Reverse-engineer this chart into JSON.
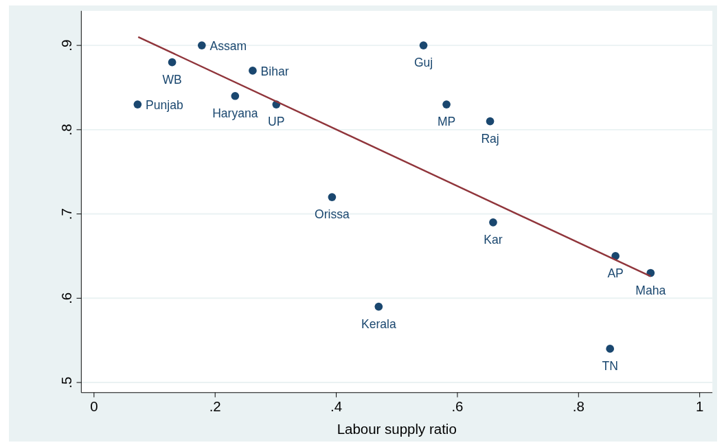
{
  "chart_data": {
    "type": "scatter",
    "xlabel": "Labour supply ratio",
    "xlim": [
      -0.021,
      1.021
    ],
    "ylim": [
      0.488,
      0.941
    ],
    "xticks": [
      {
        "value": 0,
        "label": "0"
      },
      {
        "value": 0.2,
        "label": ".2"
      },
      {
        "value": 0.4,
        "label": ".4"
      },
      {
        "value": 0.6,
        "label": ".6"
      },
      {
        "value": 0.8,
        "label": ".8"
      },
      {
        "value": 1,
        "label": "1"
      }
    ],
    "yticks": [
      {
        "value": 0.5,
        "label": ".5"
      },
      {
        "value": 0.6,
        "label": ".6"
      },
      {
        "value": 0.7,
        "label": ".7"
      },
      {
        "value": 0.8,
        "label": ".8"
      },
      {
        "value": 0.9,
        "label": ".9"
      }
    ],
    "grid": "y",
    "marker": "circle",
    "series": [
      {
        "color": "#1a476f",
        "x": [
          0.072,
          0.129,
          0.178,
          0.262,
          0.233,
          0.301,
          0.393,
          0.47,
          0.544,
          0.582,
          0.654,
          0.659,
          0.861,
          0.852,
          0.919
        ],
        "values": [
          0.83,
          0.88,
          0.9,
          0.87,
          0.84,
          0.83,
          0.72,
          0.59,
          0.9,
          0.83,
          0.81,
          0.69,
          0.65,
          0.54,
          0.63
        ]
      },
      {
        "type": "line",
        "marker": "none",
        "color": "#90353b",
        "x": [
          0.073,
          0.919
        ],
        "values": [
          0.91,
          0.626
        ]
      }
    ],
    "annotations": [
      {
        "text": "Punjab",
        "x": 0.072,
        "y": 0.83
      },
      {
        "text": "WB",
        "x": 0.129,
        "y": 0.88
      },
      {
        "text": "Assam",
        "x": 0.178,
        "y": 0.9
      },
      {
        "text": "Bihar",
        "x": 0.262,
        "y": 0.87
      },
      {
        "text": "Haryana",
        "x": 0.233,
        "y": 0.84
      },
      {
        "text": "UP",
        "x": 0.301,
        "y": 0.83
      },
      {
        "text": "Orissa",
        "x": 0.393,
        "y": 0.72
      },
      {
        "text": "Kerala",
        "x": 0.47,
        "y": 0.59
      },
      {
        "text": "Guj",
        "x": 0.544,
        "y": 0.9
      },
      {
        "text": "MP",
        "x": 0.582,
        "y": 0.83
      },
      {
        "text": "Raj",
        "x": 0.654,
        "y": 0.81
      },
      {
        "text": "Kar",
        "x": 0.659,
        "y": 0.69
      },
      {
        "text": "AP",
        "x": 0.861,
        "y": 0.65
      },
      {
        "text": "TN",
        "x": 0.852,
        "y": 0.54
      },
      {
        "text": "Maha",
        "x": 0.919,
        "y": 0.63
      }
    ]
  }
}
